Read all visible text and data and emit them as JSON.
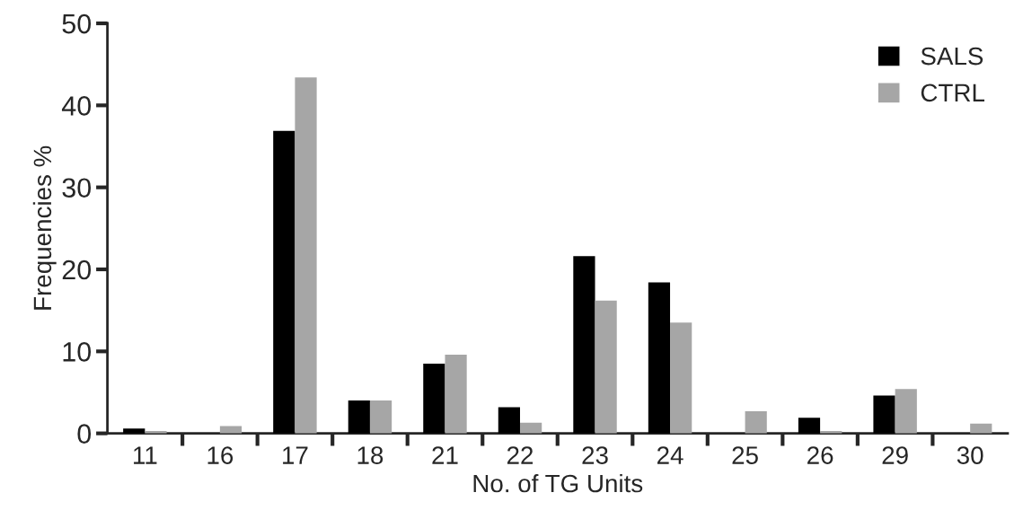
{
  "chart_data": {
    "type": "bar",
    "xlabel": "No. of TG Units",
    "ylabel": "Frequencies %",
    "categories": [
      "11",
      "16",
      "17",
      "18",
      "21",
      "22",
      "23",
      "24",
      "25",
      "26",
      "29",
      "30"
    ],
    "series": [
      {
        "name": "SALS",
        "color": "#000000",
        "values": [
          0.6,
          0,
          36.9,
          4.0,
          8.5,
          3.2,
          21.6,
          18.4,
          0,
          1.9,
          4.6,
          0
        ]
      },
      {
        "name": "CTRL",
        "color": "#a6a6a6",
        "values": [
          0.3,
          0.9,
          43.4,
          4.0,
          9.6,
          1.3,
          16.2,
          13.5,
          2.7,
          0.3,
          5.4,
          1.2
        ]
      }
    ],
    "ylim": [
      0,
      50
    ],
    "yticks": [
      0,
      10,
      20,
      30,
      40,
      50
    ],
    "grid": false,
    "legend": "top right"
  }
}
